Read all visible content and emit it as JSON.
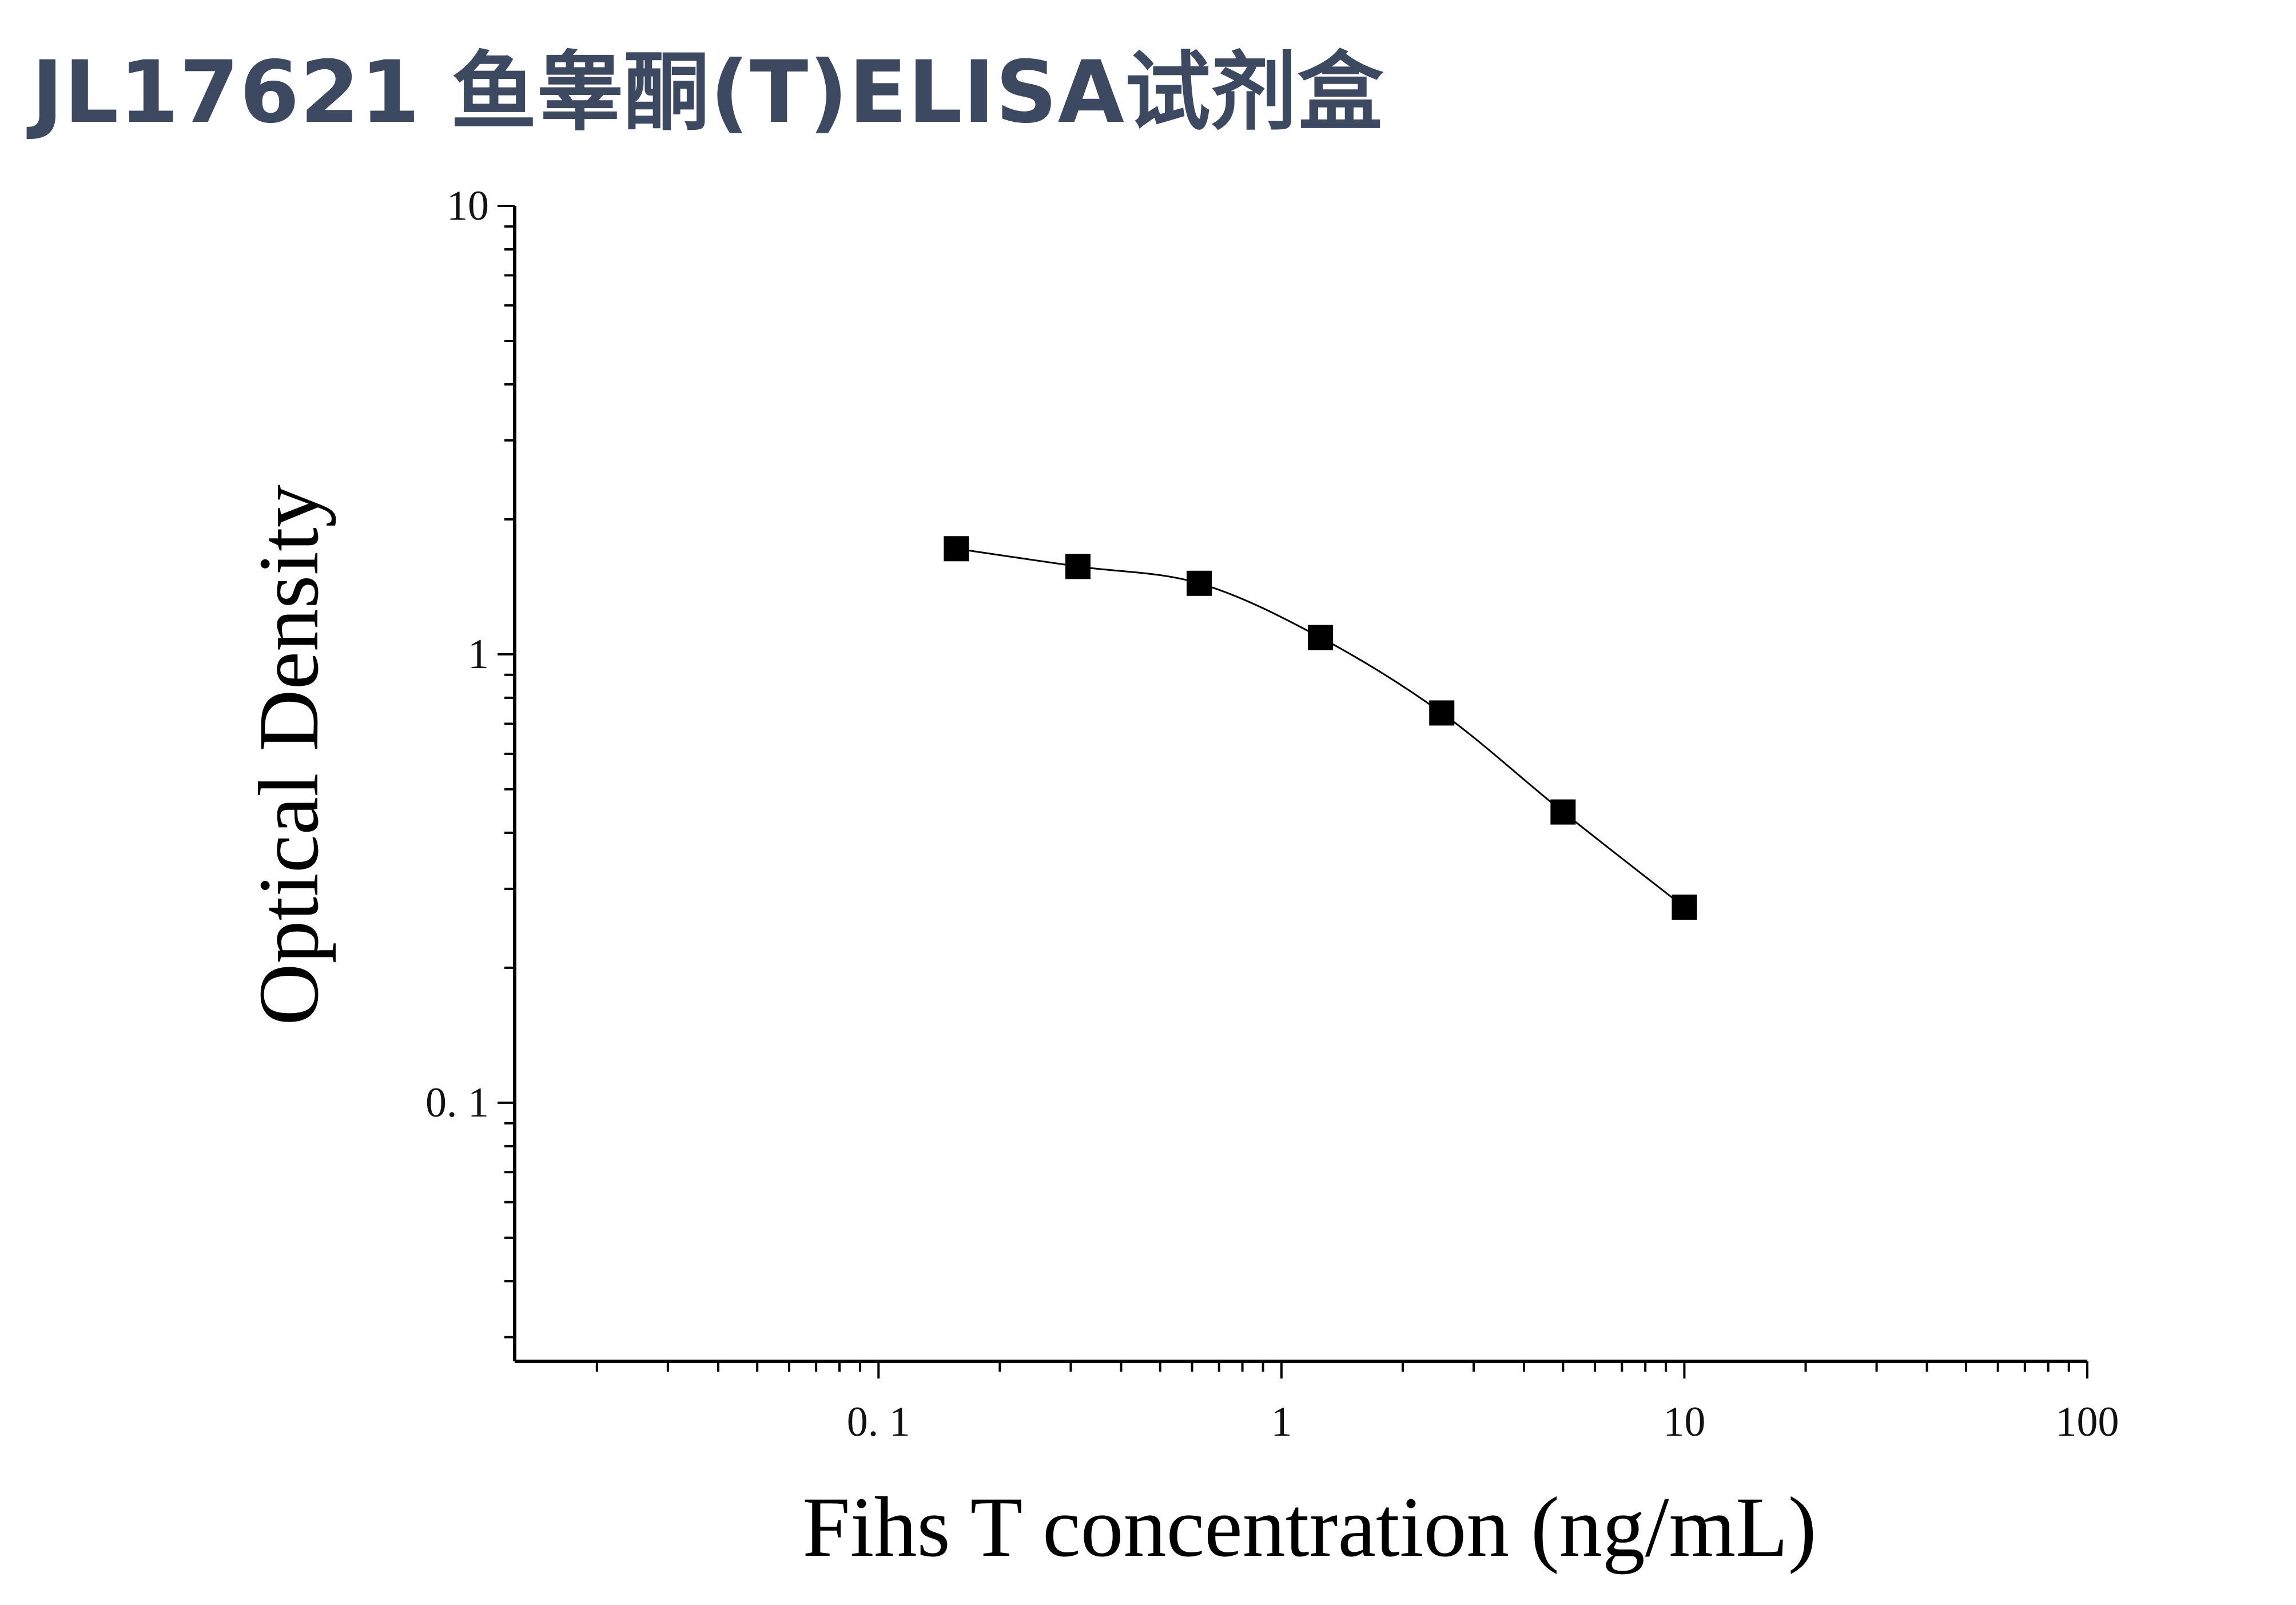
{
  "header": {
    "title": "JL17621 鱼睾酮(T)ELISA试剂盒"
  },
  "chart_data": {
    "type": "scatter",
    "title": "JL17621 鱼睾酮(T)ELISA试剂盒",
    "xlabel": "Fihs T concentration (ng/mL)",
    "ylabel": "Optical Density",
    "xscale": "log",
    "yscale": "log",
    "xlim": [
      0.0125,
      100
    ],
    "ylim": [
      0.0265,
      10
    ],
    "x_ticks": [
      0.1,
      1,
      10,
      100
    ],
    "x_tick_labels": [
      "0. 1",
      "1",
      "10",
      "100"
    ],
    "y_ticks": [
      0.1,
      1,
      10
    ],
    "y_tick_labels": [
      "0. 1",
      "1",
      "10"
    ],
    "grid": false,
    "legend": "none",
    "marker": "square",
    "fit_line": "smooth curve",
    "colors": {
      "marker": "#000000",
      "line": "#000000",
      "axis": "#000000"
    },
    "series": [
      {
        "x": [
          0.156,
          0.3125,
          0.625,
          1.25,
          2.5,
          5,
          10
        ],
        "y": [
          1.72,
          1.57,
          1.44,
          1.09,
          0.74,
          0.445,
          0.273
        ]
      }
    ]
  }
}
